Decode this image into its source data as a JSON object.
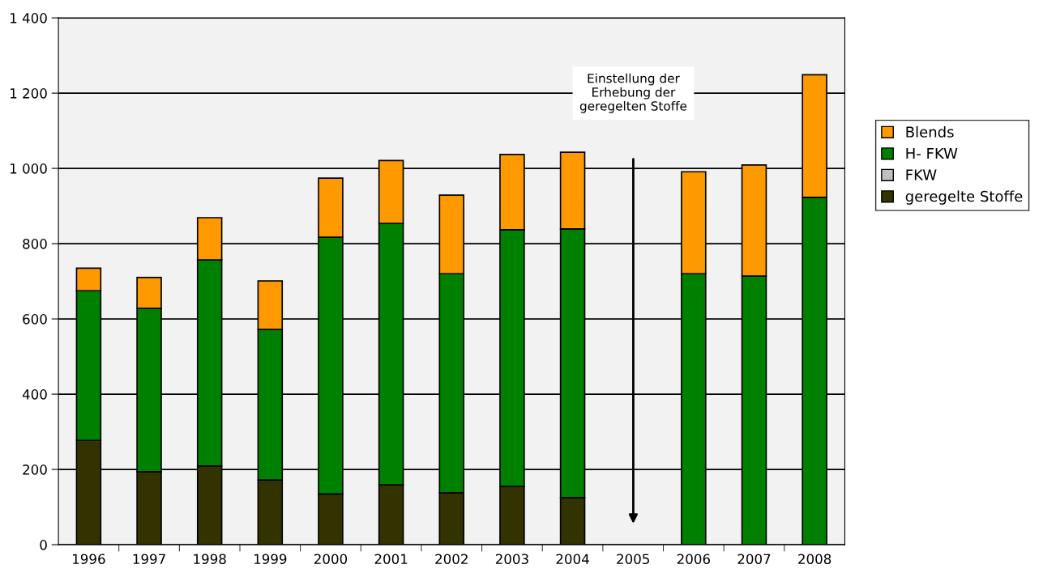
{
  "chart_data": {
    "type": "bar",
    "stacked": true,
    "categories": [
      "1996",
      "1997",
      "1998",
      "1999",
      "2000",
      "2001",
      "2002",
      "2003",
      "2004",
      "2005",
      "2006",
      "2007",
      "2008"
    ],
    "series": [
      {
        "name": "geregelte Stoffe",
        "color": "#333300",
        "values": [
          277,
          194,
          209,
          172,
          135,
          159,
          138,
          155,
          125,
          null,
          0,
          0,
          0
        ]
      },
      {
        "name": "FKW",
        "color": "#c0c0c0",
        "values": [
          0,
          0,
          0,
          0,
          0,
          0,
          0,
          0,
          0,
          null,
          0,
          0,
          0
        ]
      },
      {
        "name": "H- FKW",
        "color": "#008000",
        "values": [
          398,
          434,
          548,
          400,
          682,
          695,
          582,
          682,
          714,
          null,
          720,
          714,
          923
        ]
      },
      {
        "name": "Blends",
        "color": "#ff9900",
        "values": [
          60,
          82,
          112,
          129,
          157,
          167,
          209,
          200,
          204,
          null,
          271,
          295,
          326
        ]
      }
    ],
    "ylim": [
      0,
      1400
    ],
    "yticks": [
      {
        "value": 0,
        "label": "0"
      },
      {
        "value": 200,
        "label": "200"
      },
      {
        "value": 400,
        "label": "400"
      },
      {
        "value": 600,
        "label": "600"
      },
      {
        "value": 800,
        "label": "800"
      },
      {
        "value": 1000,
        "label": "1 000"
      },
      {
        "value": 1200,
        "label": "1 200"
      },
      {
        "value": 1400,
        "label": "1 400"
      }
    ],
    "grid": "y",
    "legend": "right",
    "annotations": [
      "Einstellung der\nErhebung der\ngeregelten Stoffe"
    ]
  }
}
